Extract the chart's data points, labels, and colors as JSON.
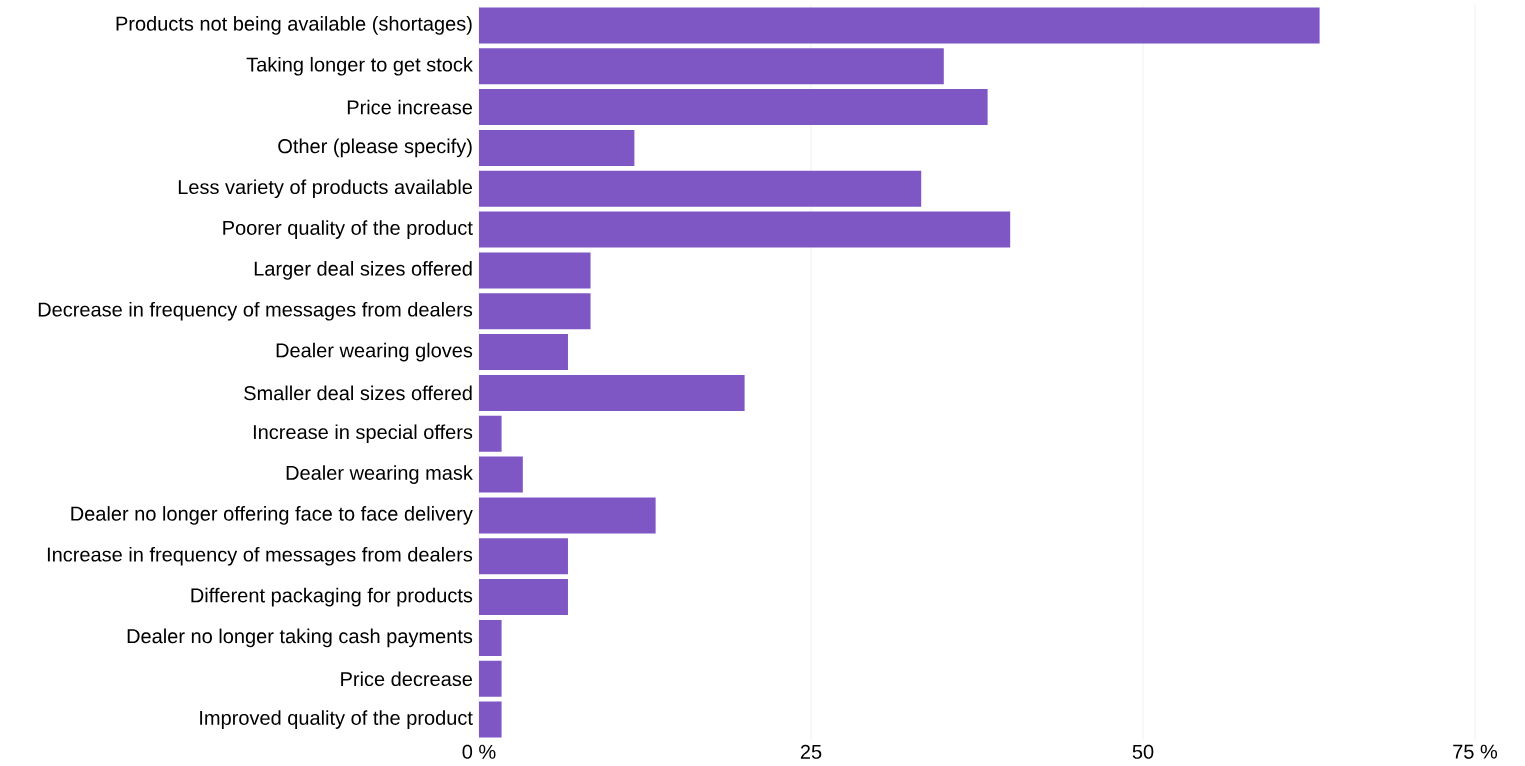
{
  "chart_data": {
    "type": "bar",
    "orientation": "horizontal",
    "categories": [
      "Products not being available (shortages)",
      "Taking longer to get stock",
      "Price increase",
      "Other (please specify)",
      "Less variety of products available",
      "Poorer quality of the product",
      "Larger deal sizes offered",
      "Decrease in frequency of messages from dealers",
      "Dealer wearing gloves",
      "Smaller deal sizes offered",
      "Increase in special offers",
      "Dealer wearing mask",
      "Dealer no longer offering face to face delivery",
      "Increase in frequency of messages from dealers",
      "Different packaging for products",
      "Dealer no longer taking cash payments",
      "Price decrease",
      "Improved quality of the product"
    ],
    "values": [
      63.3,
      35.0,
      38.3,
      11.7,
      33.3,
      40.0,
      8.4,
      8.4,
      6.7,
      20.0,
      1.7,
      3.3,
      13.3,
      6.7,
      6.7,
      1.7,
      1.7,
      1.7
    ],
    "color": "#7e57c5",
    "xlim": [
      0,
      75
    ],
    "xticks": [
      {
        "value": 0,
        "label": "0 %"
      },
      25,
      50,
      {
        "value": 75,
        "label": "75 %"
      }
    ],
    "grid": "x"
  }
}
